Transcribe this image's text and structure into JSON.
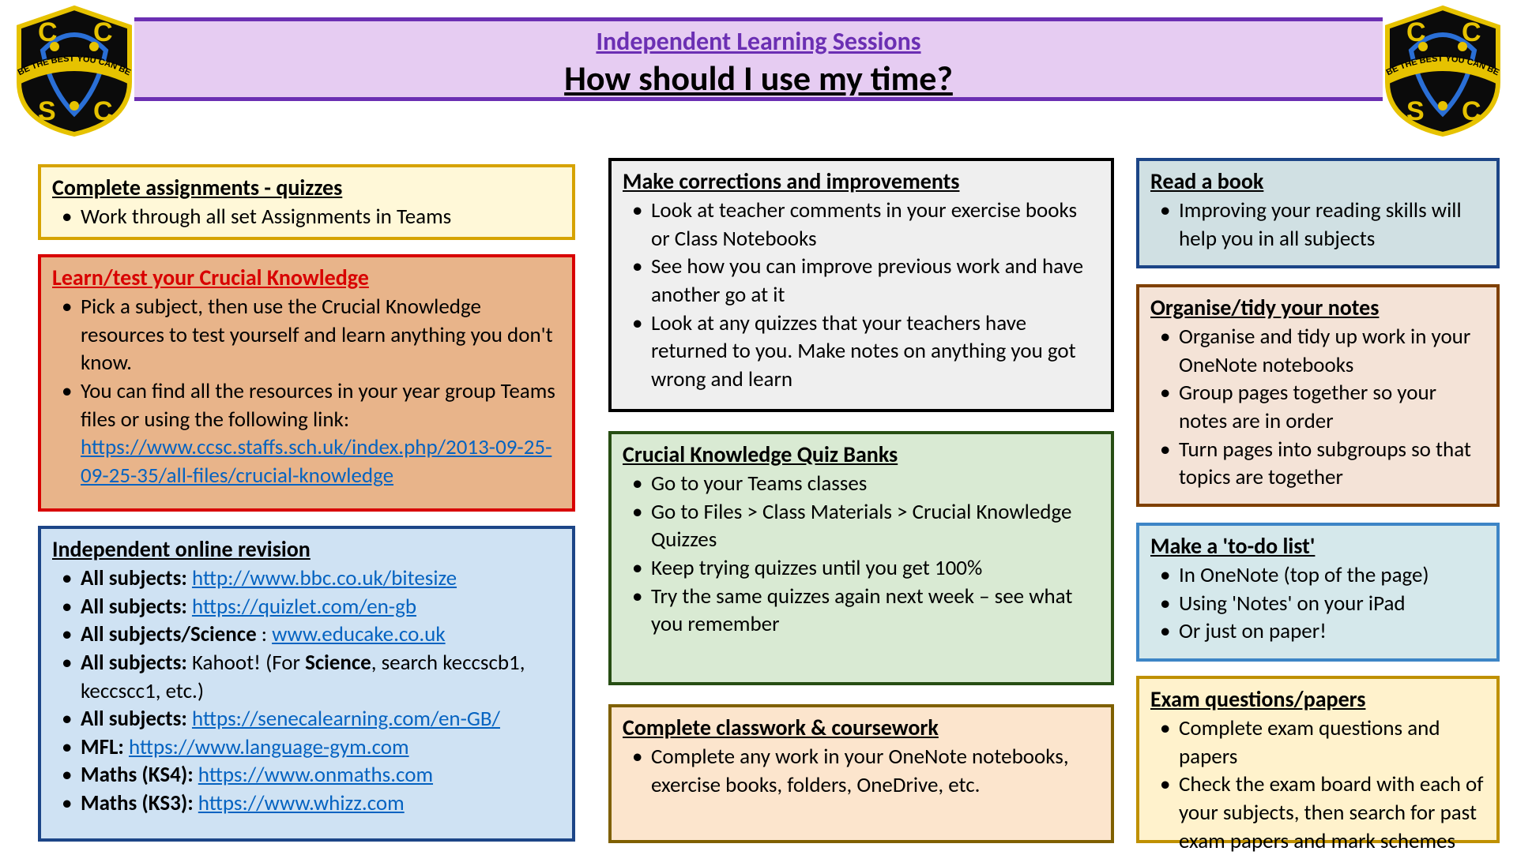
{
  "header": {
    "subtitle": "Independent Learning Sessions",
    "title": "How should I use my time?"
  },
  "crest": {
    "motto": "BE THE BEST YOU CAN BE",
    "letters": [
      "C",
      "C",
      "S",
      "C"
    ]
  },
  "cards": {
    "assign": {
      "title": "Complete assignments - quizzes",
      "items": [
        "Work through all set Assignments in Teams"
      ]
    },
    "crucial": {
      "title": "Learn/test your Crucial Knowledge",
      "item1": "Pick a subject, then use the Crucial Knowledge resources to test yourself and learn anything you don't know.",
      "item2_prefix": "You can find all the resources in your year group Teams files or using the following link: ",
      "item2_link": "https://www.ccsc.staffs.sch.uk/index.php/2013-09-25-09-25-35/all-files/crucial-knowledge"
    },
    "revision": {
      "title": "Independent online revision",
      "rows": [
        {
          "label": "All subjects:",
          "link": "http://www.bbc.co.uk/bitesize"
        },
        {
          "label": "All subjects:",
          "link": "https://quizlet.com/en-gb"
        },
        {
          "label": "All subjects/Science",
          "plain": ": ",
          "link": "www.educake.co.uk"
        },
        {
          "label": "All subjects:",
          "plain": " Kahoot! (For ",
          "bold2": "Science",
          "plain2": ", search keccscb1, keccscc1, etc.)"
        },
        {
          "label": "All subjects:",
          "link": "https://senecalearning.com/en-GB/"
        },
        {
          "label": "MFL:",
          "link": "https://www.language-gym.com"
        },
        {
          "label": "Maths (KS4):",
          "plain": "  ",
          "link": "https://www.onmaths.com"
        },
        {
          "label": "Maths (KS3):",
          "plain": "  ",
          "link": "https://www.whizz.com"
        }
      ]
    },
    "correct": {
      "title": "Make corrections and improvements",
      "items": [
        "Look at teacher comments in your exercise books or Class Notebooks",
        "See how you can improve previous work and have another go at it",
        "Look at any quizzes that your teachers have returned to you. Make notes on anything you got wrong and learn"
      ]
    },
    "quiz": {
      "title": "Crucial Knowledge Quiz Banks",
      "items": [
        "Go to your Teams classes",
        "Go to Files > Class Materials > Crucial Knowledge Quizzes",
        "Keep trying quizzes until you get 100%",
        "Try the same quizzes again next week – see what you remember"
      ]
    },
    "classwork": {
      "title": "Complete classwork & coursework",
      "items": [
        "Complete any work in your OneNote notebooks, exercise books, folders, OneDrive, etc."
      ]
    },
    "read": {
      "title": "Read a book",
      "items": [
        "Improving your reading skills will help you in all subjects"
      ]
    },
    "notes": {
      "title": "Organise/tidy your notes",
      "items": [
        "Organise and tidy up work in your OneNote notebooks",
        "Group pages together so your notes are in order",
        "Turn pages into subgroups so that topics are together"
      ]
    },
    "todo": {
      "title": "Make a 'to-do list'",
      "items": [
        "In OneNote (top of the page)",
        "Using 'Notes' on your iPad",
        "Or just on paper!"
      ]
    },
    "exam": {
      "title": "Exam questions/papers",
      "items": [
        "Complete exam questions and papers",
        "Check the exam board with each of your subjects, then search for past exam papers and mark schemes"
      ]
    }
  },
  "colors": {
    "banner_bg": "#e6ccf2",
    "banner_border": "#6b2fb3",
    "subtitle": "#6b2fb3",
    "link": "#0563c1",
    "red": "#d80000"
  }
}
